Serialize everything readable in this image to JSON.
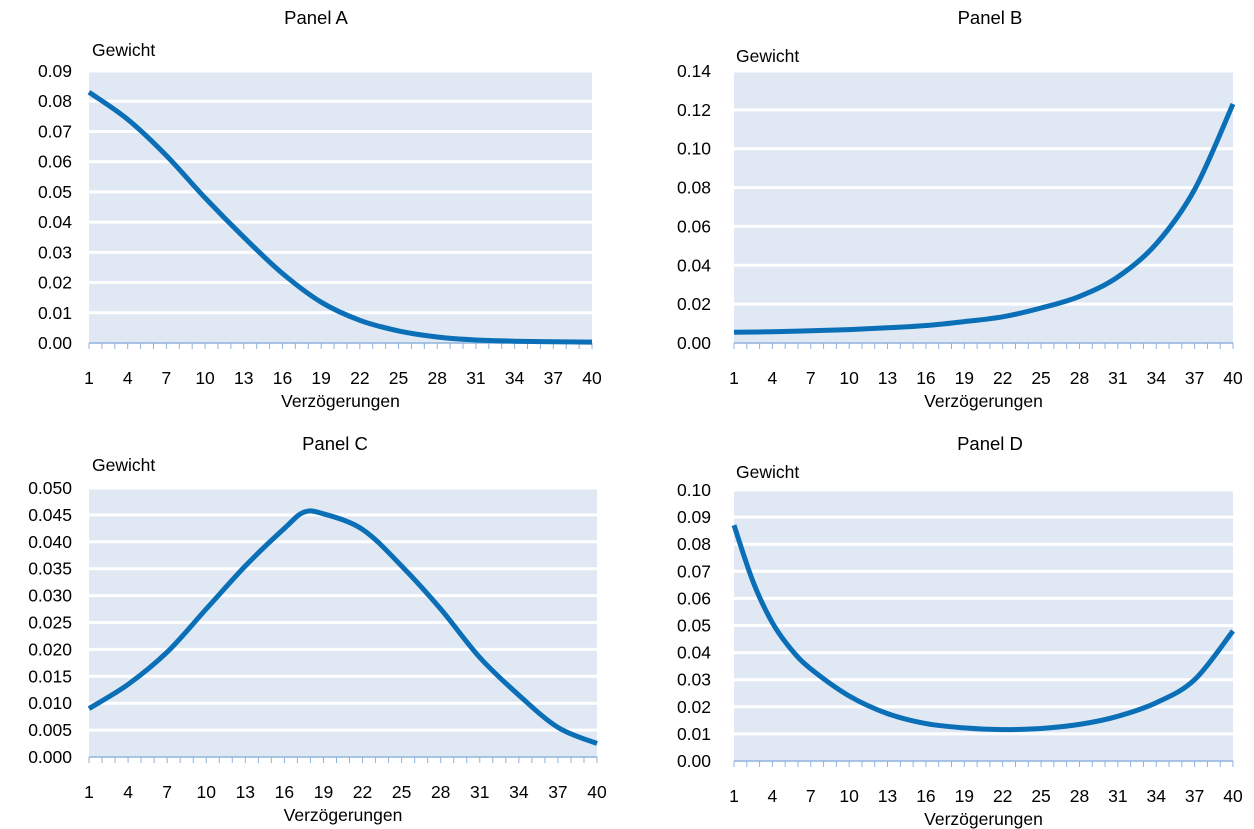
{
  "colors": {
    "line": "#0a6fb6",
    "band_fill": "#e0e8f4",
    "band_line": "#ffffff",
    "axis": "#8fb2dc",
    "text": "#000000"
  },
  "chart_data": [
    {
      "type": "line",
      "title": "Panel A",
      "ylabel": "Gewicht",
      "xlabel": "Verzögerungen",
      "x_range": [
        1,
        40
      ],
      "ylim": [
        0,
        0.09
      ],
      "yticks": [
        "0.00",
        "0.01",
        "0.02",
        "0.03",
        "0.04",
        "0.05",
        "0.06",
        "0.07",
        "0.08",
        "0.09"
      ],
      "xticks": [
        "1",
        "4",
        "7",
        "10",
        "13",
        "16",
        "19",
        "22",
        "25",
        "28",
        "31",
        "34",
        "37",
        "40"
      ],
      "grid": "horizontal bands",
      "series": [
        {
          "x": [
            1,
            4,
            7,
            10,
            13,
            16,
            19,
            22,
            25,
            28,
            31,
            34,
            37,
            40
          ],
          "y": [
            0.083,
            0.074,
            0.062,
            0.048,
            0.035,
            0.023,
            0.0135,
            0.0075,
            0.004,
            0.002,
            0.001,
            0.0006,
            0.0004,
            0.0003
          ]
        }
      ]
    },
    {
      "type": "line",
      "title": "Panel B",
      "ylabel": "Gewicht",
      "xlabel": "Verzögerungen",
      "x_range": [
        1,
        40
      ],
      "ylim": [
        0,
        0.14
      ],
      "yticks": [
        "0.00",
        "0.02",
        "0.04",
        "0.06",
        "0.08",
        "0.10",
        "0.12",
        "0.14"
      ],
      "xticks": [
        "1",
        "4",
        "7",
        "10",
        "13",
        "16",
        "19",
        "22",
        "25",
        "28",
        "31",
        "34",
        "37",
        "40"
      ],
      "grid": "horizontal bands",
      "series": [
        {
          "x": [
            1,
            4,
            7,
            10,
            13,
            16,
            19,
            22,
            25,
            28,
            31,
            34,
            37,
            40
          ],
          "y": [
            0.0055,
            0.0058,
            0.0063,
            0.0069,
            0.0078,
            0.009,
            0.011,
            0.0135,
            0.018,
            0.024,
            0.034,
            0.051,
            0.079,
            0.123
          ]
        }
      ]
    },
    {
      "type": "line",
      "title": "Panel C",
      "ylabel": "Gewicht",
      "xlabel": "Verzögerungen",
      "x_range": [
        1,
        40
      ],
      "ylim": [
        0,
        0.05
      ],
      "yticks": [
        "0.000",
        "0.005",
        "0.010",
        "0.015",
        "0.020",
        "0.025",
        "0.030",
        "0.035",
        "0.040",
        "0.045",
        "0.050"
      ],
      "xticks": [
        "1",
        "4",
        "7",
        "10",
        "13",
        "16",
        "19",
        "22",
        "25",
        "28",
        "31",
        "34",
        "37",
        "40"
      ],
      "grid": "horizontal bands",
      "series": [
        {
          "x": [
            1,
            4,
            7,
            10,
            13,
            16,
            17.5,
            19,
            22,
            25,
            28,
            31,
            34,
            37,
            40
          ],
          "y": [
            0.009,
            0.0135,
            0.0195,
            0.0275,
            0.0355,
            0.0425,
            0.0455,
            0.0452,
            0.0423,
            0.0355,
            0.0275,
            0.0185,
            0.0115,
            0.0055,
            0.0025
          ]
        }
      ]
    },
    {
      "type": "line",
      "title": "Panel D",
      "ylabel": "Gewicht",
      "xlabel": "Verzögerungen",
      "x_range": [
        1,
        40
      ],
      "ylim": [
        0,
        0.1
      ],
      "yticks": [
        "0.00",
        "0.01",
        "0.02",
        "0.03",
        "0.04",
        "0.05",
        "0.06",
        "0.07",
        "0.08",
        "0.09",
        "0.10"
      ],
      "xticks": [
        "1",
        "4",
        "7",
        "10",
        "13",
        "16",
        "19",
        "22",
        "25",
        "28",
        "31",
        "34",
        "37",
        "40"
      ],
      "grid": "horizontal bands",
      "series": [
        {
          "x": [
            1,
            2.5,
            4,
            5.5,
            7,
            10,
            13,
            16,
            19,
            22,
            25,
            28,
            31,
            34,
            37,
            40
          ],
          "y": [
            0.087,
            0.066,
            0.051,
            0.041,
            0.034,
            0.024,
            0.0175,
            0.0138,
            0.0122,
            0.0116,
            0.012,
            0.0135,
            0.0165,
            0.0215,
            0.03,
            0.048
          ]
        }
      ]
    }
  ]
}
